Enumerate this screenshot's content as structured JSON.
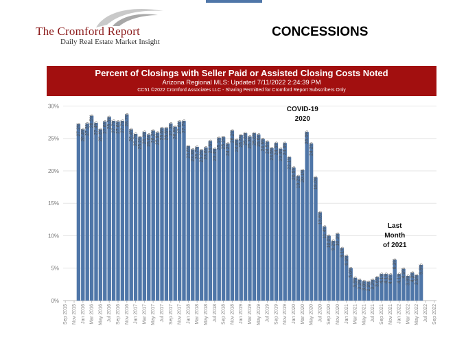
{
  "header": {
    "brand_name": "The Cromford Report",
    "brand_tagline": "Daily Real Estate Market Insight",
    "slide_title": "CONCESSIONS"
  },
  "banner": {
    "title": "Percent of Closings with Seller Paid or Assisted Closing Costs Noted",
    "subtitle": "Arizona Regional MLS: Updated 7/11/2022 2:24:39 PM",
    "copyright": "CC51 ©2022 Cromford Associates LLC - Sharing Permitted for Cromford Report Subscribers Only"
  },
  "colors": {
    "bar": "#4f76a8",
    "banner": "#a20f0f",
    "brand": "#8b1a1a"
  },
  "chart_data": {
    "type": "bar",
    "title": "Percent of Closings with Seller Paid or Assisted Closing Costs Noted",
    "ylabel": "",
    "xlabel": "",
    "ylim": [
      0,
      31
    ],
    "y_ticks": [
      "0%",
      "5%",
      "10%",
      "15%",
      "20%",
      "25%",
      "30%"
    ],
    "grid": "horizontal",
    "x_ticks": [
      "Sep 2015",
      "Nov 2015",
      "Jan 2016",
      "Mar 2016",
      "May 2016",
      "Jul 2016",
      "Sep 2016",
      "Nov 2016",
      "Jan 2017",
      "Mar 2017",
      "May 2017",
      "Jul 2017",
      "Sep 2017",
      "Nov 2017",
      "Jan 2018",
      "Mar 2018",
      "May 2018",
      "Jul 2018",
      "Sep 2018",
      "Nov 2018",
      "Jan 2019",
      "Mar 2019",
      "May 2019",
      "Jul 2019",
      "Sep 2019",
      "Nov 2019",
      "Jan 2020",
      "Mar 2020",
      "May 2020",
      "Jul 2020",
      "Sep 2020",
      "Nov 2020",
      "Jan 2021",
      "Mar 2021",
      "May 2021",
      "Jul 2021",
      "Sep 2021",
      "Nov 2021",
      "Jan 2022",
      "Mar 2022",
      "May 2022",
      "Jul 2022",
      "Sep 2022"
    ],
    "series": [
      {
        "x": [
          "Dec 2015",
          "Jan 2016",
          "Feb 2016",
          "Mar 2016",
          "Apr 2016",
          "May 2016",
          "Jun 2016",
          "Jul 2016",
          "Aug 2016",
          "Sep 2016",
          "Oct 2016",
          "Nov 2016",
          "Dec 2016",
          "Jan 2017",
          "Feb 2017",
          "Mar 2017",
          "Apr 2017",
          "May 2017",
          "Jun 2017",
          "Jul 2017",
          "Aug 2017",
          "Sep 2017",
          "Oct 2017",
          "Nov 2017",
          "Dec 2017",
          "Jan 2018",
          "Feb 2018",
          "Mar 2018",
          "Apr 2018",
          "May 2018",
          "Jun 2018",
          "Jul 2018",
          "Aug 2018",
          "Sep 2018",
          "Oct 2018",
          "Nov 2018",
          "Dec 2018",
          "Jan 2019",
          "Feb 2019",
          "Mar 2019",
          "Apr 2019",
          "May 2019",
          "Jun 2019",
          "Jul 2019",
          "Aug 2019",
          "Sep 2019",
          "Oct 2019",
          "Nov 2019",
          "Dec 2019",
          "Jan 2020",
          "Feb 2020",
          "Mar 2020",
          "Apr 2020",
          "May 2020",
          "Jun 2020",
          "Jul 2020",
          "Aug 2020",
          "Sep 2020",
          "Oct 2020",
          "Nov 2020",
          "Dec 2020",
          "Jan 2021",
          "Feb 2021",
          "Mar 2021",
          "Apr 2021",
          "May 2021",
          "Jun 2021",
          "Jul 2021",
          "Aug 2021",
          "Sep 2021",
          "Oct 2021",
          "Nov 2021",
          "Dec 2021",
          "Jan 2022",
          "Feb 2022",
          "Mar 2022",
          "Apr 2022",
          "May 2022",
          "Jun 2022"
        ],
        "values": [
          27.2,
          26.4,
          27.3,
          28.5,
          27.4,
          26.4,
          27.6,
          28.3,
          27.7,
          27.6,
          27.7,
          28.7,
          26.4,
          25.7,
          25.2,
          26.0,
          25.6,
          26.2,
          25.9,
          26.6,
          26.6,
          27.3,
          26.8,
          27.6,
          27.7,
          23.8,
          23.3,
          23.7,
          23.2,
          23.6,
          24.6,
          23.4,
          25.1,
          25.2,
          24.2,
          26.2,
          24.8,
          25.5,
          25.8,
          25.3,
          25.8,
          25.6,
          24.9,
          24.5,
          23.5,
          24.3,
          23.4,
          24.3,
          22.1,
          20.5,
          19.2,
          20.1,
          26.0,
          24.2,
          19.0,
          13.6,
          11.4,
          10.0,
          9.2,
          10.3,
          8.1,
          6.9,
          5.0,
          3.5,
          3.2,
          3.0,
          2.9,
          3.2,
          3.6,
          4.1,
          4.1,
          4.0,
          6.3,
          4.1,
          4.9,
          3.8,
          4.3,
          3.9,
          5.5
        ]
      }
    ],
    "annotations": [
      {
        "text": "COVID-19",
        "at": "Mar 2020"
      },
      {
        "text": "2020",
        "at": "Mar 2020"
      },
      {
        "text": "Last",
        "at": "Dec 2021"
      },
      {
        "text": "Month",
        "at": "Dec 2021"
      },
      {
        "text": "of 2021",
        "at": "Dec 2021"
      }
    ]
  }
}
